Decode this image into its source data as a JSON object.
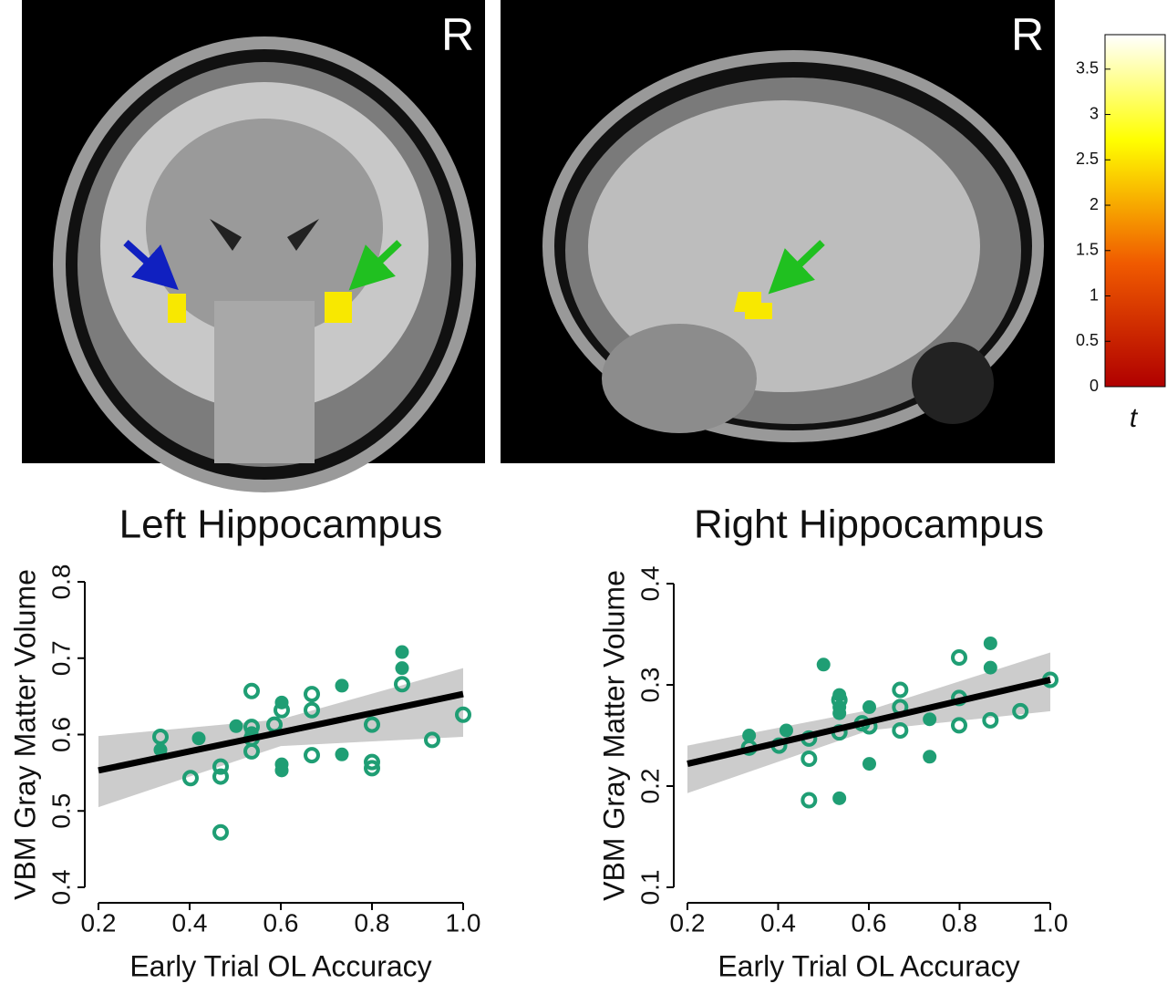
{
  "panels": [
    {
      "label": "R"
    },
    {
      "label": "R"
    }
  ],
  "colorbar": {
    "label": "t",
    "lim": [
      0,
      3.88
    ],
    "ticks": [
      0,
      0.5,
      1,
      1.5,
      2,
      2.5,
      3,
      3.5
    ]
  },
  "chart_data": [
    {
      "type": "scatter",
      "title": "Left Hippocampus",
      "x_label": "Early Trial OL Accuracy",
      "y_label": "VBM Gray Matter Volume",
      "xlim": [
        0.2,
        1.0
      ],
      "xticks": [
        0.2,
        0.4,
        0.6,
        0.8,
        {
          "value": 1.0,
          "label": "1.0"
        }
      ],
      "ylim": [
        0.4,
        0.8
      ],
      "yticks": [
        0.4,
        0.5,
        0.6,
        0.7,
        0.8
      ],
      "series": [
        {
          "color": "#1f9e74",
          "marker": "open",
          "x": [
            0.336,
            0.402,
            0.468,
            0.468,
            0.468,
            0.536,
            0.536,
            0.536,
            0.536,
            0.586,
            0.602,
            0.668,
            0.668,
            0.668,
            0.8,
            0.8,
            0.8,
            0.866,
            0.932,
            1.0
          ],
          "values": [
            0.597,
            0.543,
            0.558,
            0.545,
            0.472,
            0.657,
            0.61,
            0.595,
            0.578,
            0.613,
            0.632,
            0.653,
            0.632,
            0.573,
            0.613,
            0.564,
            0.556,
            0.666,
            0.593,
            0.626
          ]
        },
        {
          "color": "#1f9e74",
          "marker": "filled",
          "x": [
            0.336,
            0.42,
            0.502,
            0.536,
            0.602,
            0.602,
            0.602,
            0.734,
            0.734,
            0.866,
            0.866
          ],
          "values": [
            0.58,
            0.595,
            0.611,
            0.602,
            0.642,
            0.561,
            0.553,
            0.664,
            0.574,
            0.708,
            0.687
          ]
        }
      ],
      "fit": {
        "color": "#000000",
        "x": [
          0.2,
          1.0
        ],
        "values": [
          0.553,
          0.653
        ]
      },
      "band": {
        "color": "#cccccc",
        "x": [
          0.2,
          0.6,
          1.0
        ],
        "lower": [
          0.505,
          0.585,
          0.597
        ],
        "upper": [
          0.598,
          0.62,
          0.687
        ]
      }
    },
    {
      "type": "scatter",
      "title": "Right Hippocampus",
      "x_label": "Early Trial OL Accuracy",
      "y_label": "VBM Gray Matter Volume",
      "xlim": [
        0.2,
        1.0
      ],
      "xticks": [
        0.2,
        0.4,
        0.6,
        0.8,
        {
          "value": 1.0,
          "label": "1.0"
        }
      ],
      "ylim": [
        0.1,
        0.4
      ],
      "yticks": [
        0.1,
        0.2,
        0.3,
        0.4
      ],
      "series": [
        {
          "color": "#1f9e74",
          "marker": "open",
          "x": [
            0.336,
            0.402,
            0.468,
            0.468,
            0.468,
            0.535,
            0.535,
            0.585,
            0.601,
            0.669,
            0.669,
            0.669,
            0.799,
            0.799,
            0.799,
            0.868,
            0.934,
            1.0
          ],
          "values": [
            0.238,
            0.24,
            0.247,
            0.227,
            0.186,
            0.285,
            0.253,
            0.262,
            0.259,
            0.295,
            0.278,
            0.255,
            0.327,
            0.287,
            0.26,
            0.265,
            0.274,
            0.305
          ]
        },
        {
          "color": "#1f9e74",
          "marker": "filled",
          "x": [
            0.336,
            0.418,
            0.5,
            0.535,
            0.535,
            0.535,
            0.535,
            0.601,
            0.601,
            0.734,
            0.734,
            0.868,
            0.868
          ],
          "values": [
            0.25,
            0.255,
            0.32,
            0.29,
            0.278,
            0.272,
            0.188,
            0.278,
            0.222,
            0.266,
            0.229,
            0.341,
            0.317
          ]
        }
      ],
      "fit": {
        "color": "#000000",
        "x": [
          0.2,
          1.0
        ],
        "values": [
          0.222,
          0.305
        ]
      },
      "band": {
        "color": "#cccccc",
        "x": [
          0.2,
          0.6,
          1.0
        ],
        "lower": [
          0.193,
          0.255,
          0.274
        ],
        "upper": [
          0.24,
          0.275,
          0.332
        ]
      }
    }
  ]
}
